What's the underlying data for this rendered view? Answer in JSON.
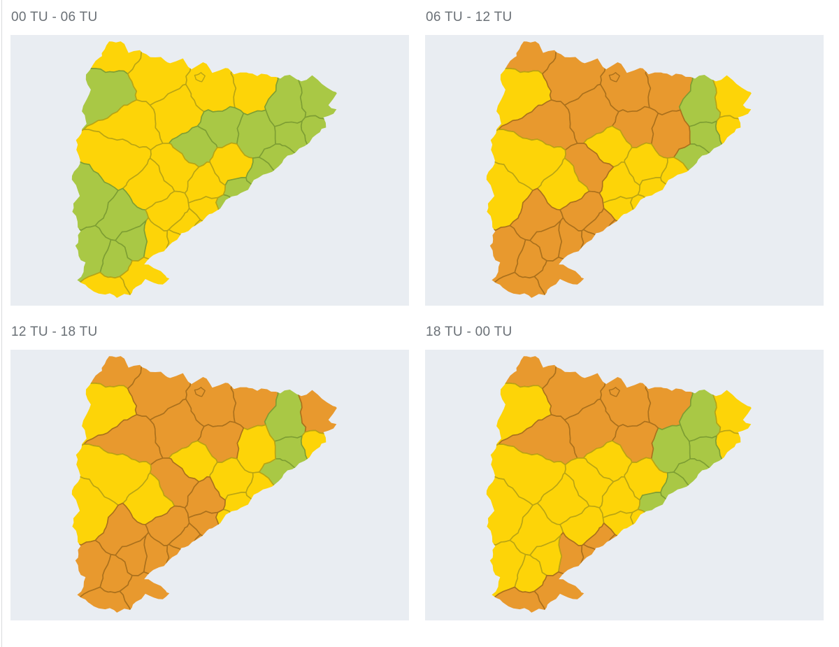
{
  "page": {
    "kind": "weather-warning-forecast-maps",
    "region_shown": "Catalunya (comarques)"
  },
  "colors": {
    "title": "#6a7076",
    "panel_bg": "#e9edf2",
    "page_bg": "#ffffff",
    "divider": "#d9dbdd",
    "levels": {
      "green": {
        "fill": "#a9c845",
        "stroke": "#7d9e33"
      },
      "yellow": {
        "fill": "#fdd408",
        "stroke": "#b9a414"
      },
      "orange": {
        "fill": "#e8992e",
        "stroke": "#aa701c"
      }
    }
  },
  "panels": [
    {
      "title": "00 TU - 06 TU",
      "levels": {
        "aran": "yellow",
        "alta-ribagorca": "green",
        "pallars-sobira": "yellow",
        "pallars-jussa": "yellow",
        "alt-urgell": "yellow",
        "cerdanya": "yellow",
        "ripolles": "yellow",
        "garrotxa": "green",
        "alt-emporda": "green",
        "baix-emporda": "green",
        "girones": "green",
        "selva": "green",
        "osona": "green",
        "bergueda": "green",
        "solsones": "green",
        "bages": "yellow",
        "valles": "green",
        "maresme": "green",
        "barcelones": "green",
        "anoia": "yellow",
        "alt-penedes": "yellow",
        "segarra": "yellow",
        "urgell": "yellow",
        "noguera": "yellow",
        "segria": "green",
        "garrigues": "green",
        "conca-barbera": "yellow",
        "alt-camp": "yellow",
        "baix-penedes": "yellow",
        "tarragones": "yellow",
        "baix-camp": "yellow",
        "priorat": "green",
        "ribera-ebre": "green",
        "terra-alta": "green",
        "baix-ebre": "yellow",
        "montsia": "yellow"
      }
    },
    {
      "title": "06 TU - 12 TU",
      "levels": {
        "aran": "orange",
        "alta-ribagorca": "yellow",
        "pallars-sobira": "orange",
        "pallars-jussa": "orange",
        "alt-urgell": "orange",
        "cerdanya": "orange",
        "ripolles": "orange",
        "garrotxa": "green",
        "alt-emporda": "yellow",
        "baix-emporda": "yellow",
        "girones": "green",
        "selva": "green",
        "osona": "orange",
        "bergueda": "orange",
        "solsones": "yellow",
        "bages": "yellow",
        "valles": "yellow",
        "maresme": "yellow",
        "barcelones": "yellow",
        "anoia": "yellow",
        "alt-penedes": "yellow",
        "segarra": "orange",
        "urgell": "yellow",
        "noguera": "yellow",
        "segria": "yellow",
        "garrigues": "orange",
        "conca-barbera": "orange",
        "alt-camp": "orange",
        "baix-penedes": "orange",
        "tarragones": "orange",
        "baix-camp": "orange",
        "priorat": "orange",
        "ribera-ebre": "orange",
        "terra-alta": "orange",
        "baix-ebre": "orange",
        "montsia": "orange"
      }
    },
    {
      "title": "12 TU - 18 TU",
      "levels": {
        "aran": "orange",
        "alta-ribagorca": "yellow",
        "pallars-sobira": "orange",
        "pallars-jussa": "orange",
        "alt-urgell": "orange",
        "cerdanya": "orange",
        "ripolles": "orange",
        "garrotxa": "green",
        "alt-emporda": "orange",
        "baix-emporda": "yellow",
        "girones": "green",
        "selva": "green",
        "osona": "yellow",
        "bergueda": "orange",
        "solsones": "yellow",
        "bages": "yellow",
        "valles": "yellow",
        "maresme": "yellow",
        "barcelones": "yellow",
        "anoia": "orange",
        "alt-penedes": "orange",
        "segarra": "orange",
        "urgell": "yellow",
        "noguera": "yellow",
        "segria": "yellow",
        "garrigues": "orange",
        "conca-barbera": "orange",
        "alt-camp": "orange",
        "baix-penedes": "orange",
        "tarragones": "orange",
        "baix-camp": "orange",
        "priorat": "orange",
        "ribera-ebre": "orange",
        "terra-alta": "orange",
        "baix-ebre": "orange",
        "montsia": "orange"
      }
    },
    {
      "title": "18 TU - 00 TU",
      "levels": {
        "aran": "orange",
        "alta-ribagorca": "yellow",
        "pallars-sobira": "orange",
        "pallars-jussa": "orange",
        "alt-urgell": "orange",
        "cerdanya": "orange",
        "ripolles": "orange",
        "garrotxa": "green",
        "alt-emporda": "yellow",
        "baix-emporda": "yellow",
        "girones": "green",
        "selva": "green",
        "osona": "green",
        "bergueda": "orange",
        "solsones": "yellow",
        "bages": "yellow",
        "valles": "green",
        "maresme": "green",
        "barcelones": "yellow",
        "anoia": "yellow",
        "alt-penedes": "yellow",
        "segarra": "yellow",
        "urgell": "yellow",
        "noguera": "yellow",
        "segria": "yellow",
        "garrigues": "yellow",
        "conca-barbera": "yellow",
        "alt-camp": "orange",
        "baix-penedes": "orange",
        "tarragones": "orange",
        "baix-camp": "orange",
        "priorat": "yellow",
        "ribera-ebre": "yellow",
        "terra-alta": "yellow",
        "baix-ebre": "orange",
        "montsia": "orange"
      }
    }
  ]
}
